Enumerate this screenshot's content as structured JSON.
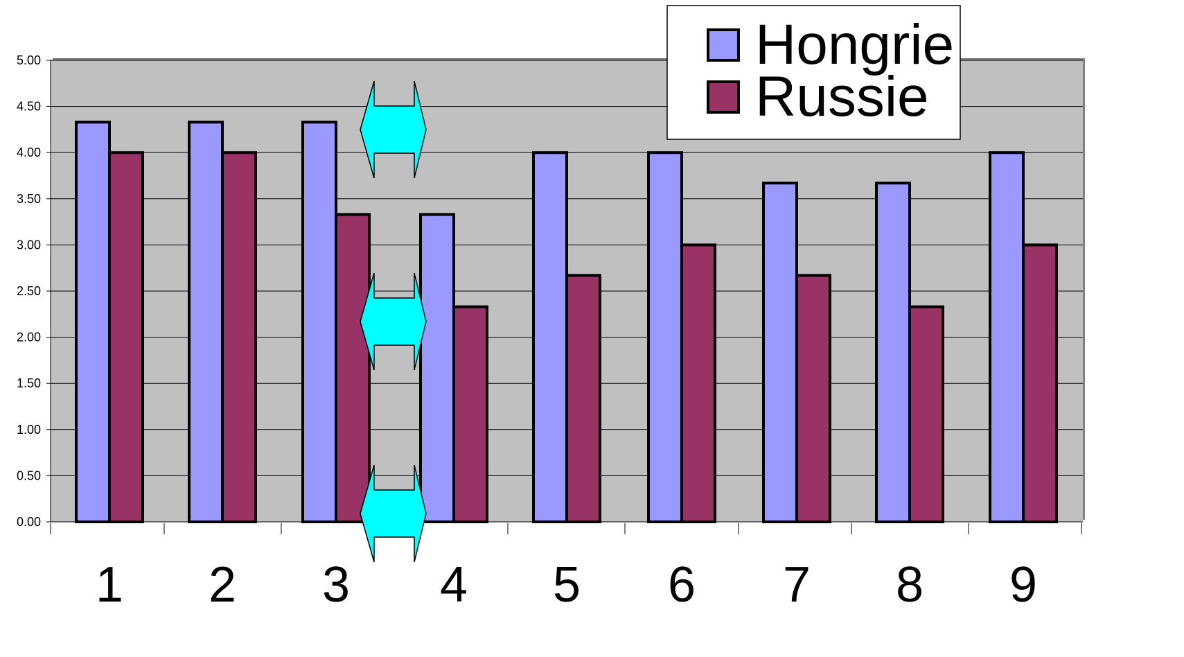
{
  "chart_data": {
    "type": "bar",
    "title": "",
    "xlabel": "",
    "ylabel": "",
    "categories": [
      "1",
      "2",
      "3",
      "4",
      "5",
      "6",
      "7",
      "8",
      "9"
    ],
    "series": [
      {
        "name": "Hongrie",
        "color": "#9999ff",
        "values": [
          4.33,
          4.33,
          4.33,
          3.33,
          4.0,
          4.0,
          3.67,
          3.67,
          4.0
        ]
      },
      {
        "name": "Russie",
        "color": "#993366",
        "values": [
          4.0,
          4.0,
          3.33,
          2.33,
          2.67,
          3.0,
          2.67,
          2.33,
          3.0
        ]
      }
    ],
    "ylim": [
      0,
      5
    ],
    "yticks": [
      "0.00",
      "0.50",
      "1.00",
      "1.50",
      "2.00",
      "2.50",
      "3.00",
      "3.50",
      "4.00",
      "4.50",
      "5.00"
    ],
    "grid": true,
    "plot_background": "#c0c0c0",
    "legend_position": "top-right",
    "annotation": {
      "type": "double-headed arrows between categories 3 and 4",
      "count": 3,
      "color": "#00ffff"
    }
  }
}
